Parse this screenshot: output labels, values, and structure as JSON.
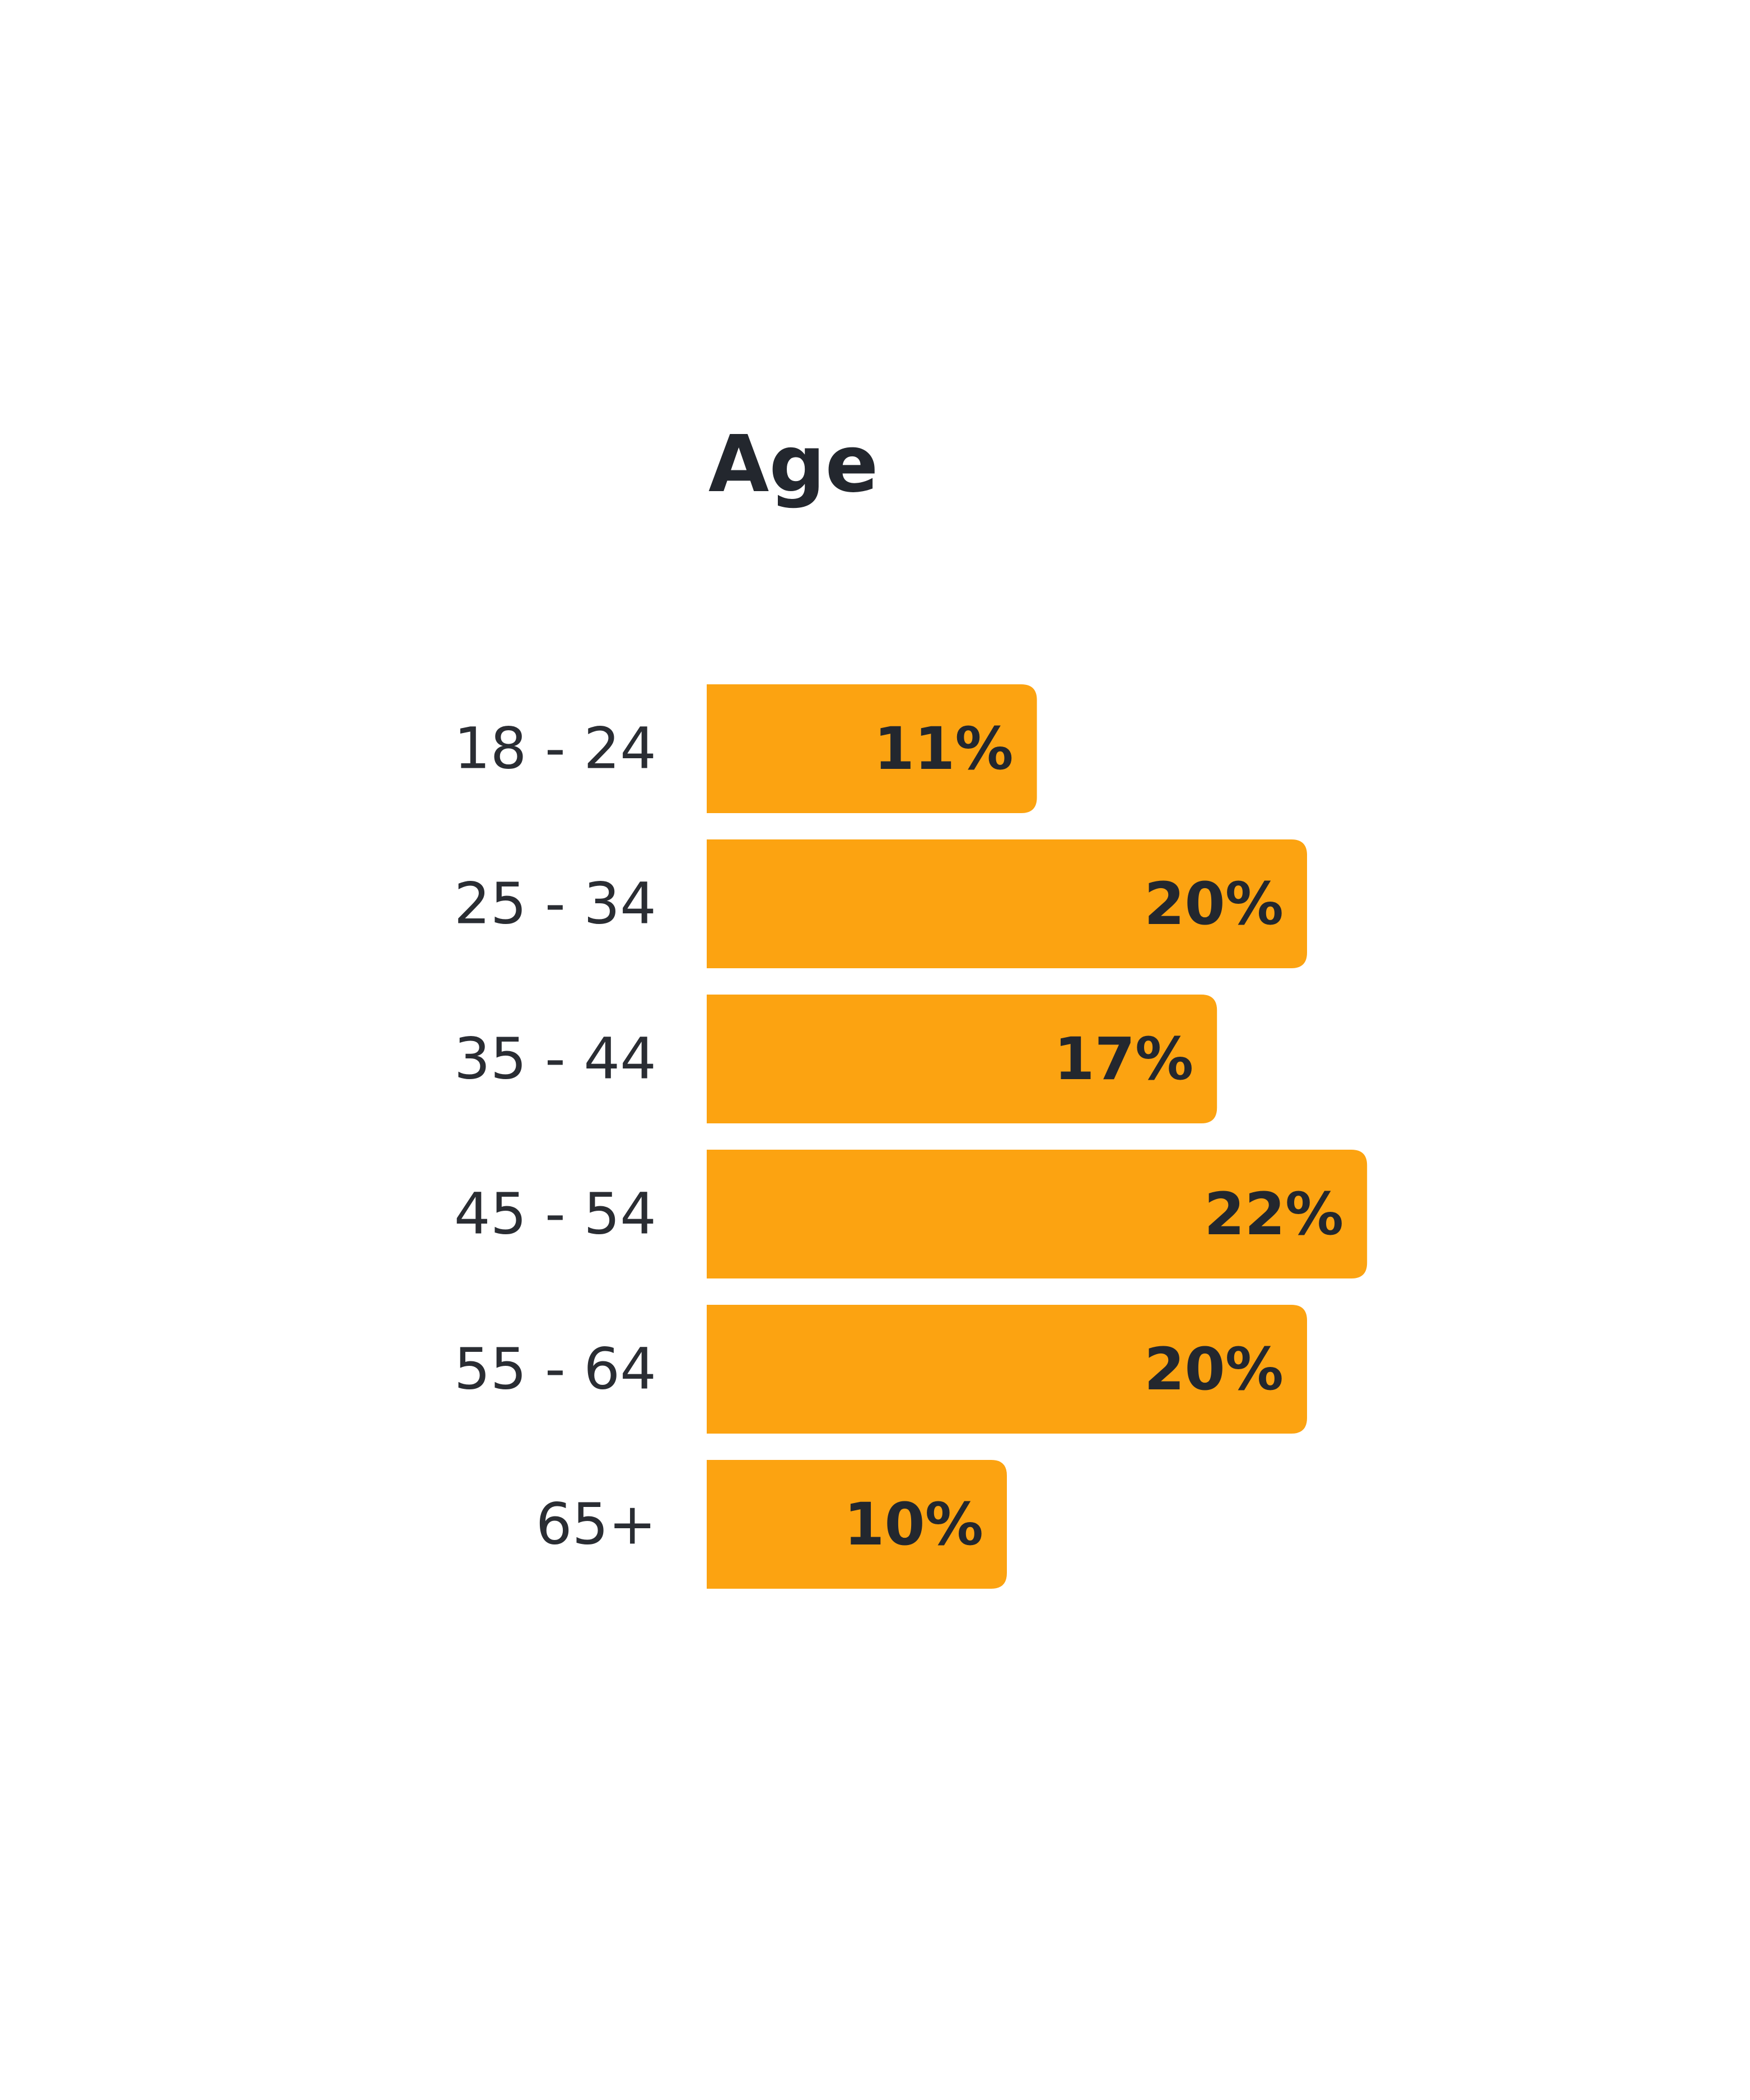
{
  "chart_data": {
    "type": "bar",
    "orientation": "horizontal",
    "title": "Age",
    "categories": [
      "18 - 24",
      "25 - 34",
      "35 - 44",
      "45 - 54",
      "55 - 64",
      "65+"
    ],
    "values": [
      11,
      20,
      17,
      22,
      20,
      10
    ],
    "value_labels": [
      "11%",
      "20%",
      "17%",
      "22%",
      "20%",
      "10%"
    ],
    "unit": "%",
    "bar_color": "#FCA311",
    "label_color": "#23272E",
    "grid": false,
    "legend": "none"
  }
}
